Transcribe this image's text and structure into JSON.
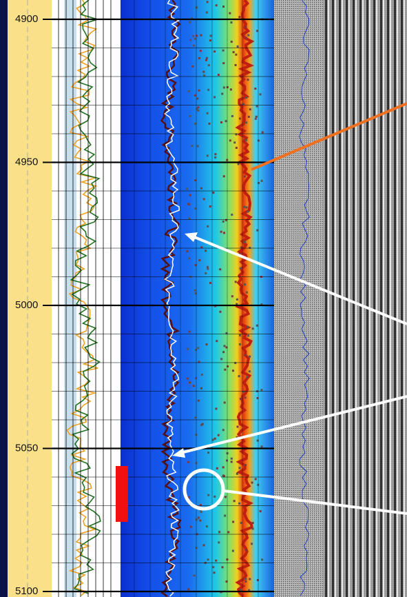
{
  "depth_track": {
    "labels": [
      4900,
      4950,
      5000,
      5050,
      5100
    ]
  }
}
